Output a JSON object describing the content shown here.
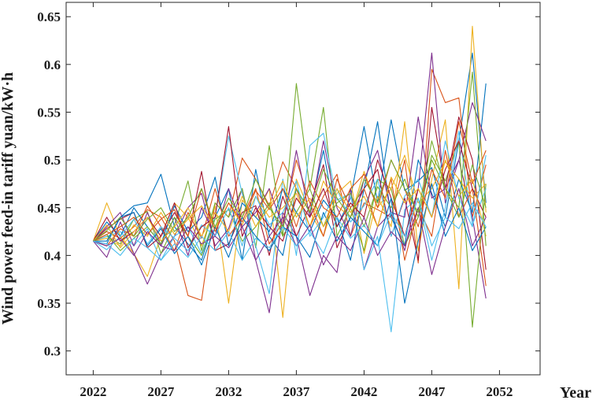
{
  "chart_data": {
    "type": "line",
    "xlabel": "Year",
    "ylabel": "Wind power feed-in tariff   yuan/kW·h",
    "xlim": [
      2020,
      2055
    ],
    "ylim": [
      0.275,
      0.665
    ],
    "xticks": [
      2022,
      2027,
      2032,
      2037,
      2042,
      2047,
      2052
    ],
    "yticks": [
      0.3,
      0.35,
      0.4,
      0.45,
      0.5,
      0.55,
      0.6,
      0.65
    ],
    "ytick_labels": [
      "0.3",
      "0.35",
      "0.4",
      "0.45",
      "0.5",
      "0.55",
      "0.6",
      "0.65"
    ],
    "grid": false,
    "legend": "none",
    "start_value": 0.415,
    "x": [
      2022,
      2023,
      2024,
      2025,
      2026,
      2027,
      2028,
      2029,
      2030,
      2031,
      2032,
      2033,
      2034,
      2035,
      2036,
      2037,
      2038,
      2039,
      2040,
      2041,
      2042,
      2043,
      2044,
      2045,
      2046,
      2047,
      2048,
      2049,
      2050,
      2051
    ],
    "series": [
      {
        "color": "#0072BD",
        "values": [
          0.415,
          0.412,
          0.44,
          0.452,
          0.455,
          0.485,
          0.43,
          0.412,
          0.395,
          0.44,
          0.47,
          0.395,
          0.49,
          0.42,
          0.4,
          0.47,
          0.445,
          0.51,
          0.43,
          0.46,
          0.535,
          0.455,
          0.542,
          0.468,
          0.478,
          0.492,
          0.44,
          0.52,
          0.612,
          0.455
        ]
      },
      {
        "color": "#D95319",
        "values": [
          0.415,
          0.425,
          0.418,
          0.43,
          0.448,
          0.44,
          0.415,
          0.358,
          0.353,
          0.455,
          0.44,
          0.502,
          0.48,
          0.452,
          0.498,
          0.47,
          0.43,
          0.462,
          0.485,
          0.42,
          0.455,
          0.448,
          0.44,
          0.5,
          0.392,
          0.595,
          0.56,
          0.565,
          0.44,
          0.495
        ]
      },
      {
        "color": "#EDB120",
        "values": [
          0.415,
          0.455,
          0.42,
          0.402,
          0.378,
          0.42,
          0.455,
          0.44,
          0.41,
          0.452,
          0.35,
          0.458,
          0.44,
          0.47,
          0.335,
          0.48,
          0.446,
          0.42,
          0.465,
          0.478,
          0.402,
          0.462,
          0.43,
          0.54,
          0.405,
          0.48,
          0.542,
          0.365,
          0.64,
          0.445
        ]
      },
      {
        "color": "#7E2F8E",
        "values": [
          0.415,
          0.398,
          0.435,
          0.402,
          0.37,
          0.402,
          0.42,
          0.45,
          0.465,
          0.41,
          0.428,
          0.47,
          0.395,
          0.34,
          0.445,
          0.42,
          0.358,
          0.4,
          0.382,
          0.47,
          0.385,
          0.43,
          0.445,
          0.405,
          0.47,
          0.612,
          0.455,
          0.5,
          0.44,
          0.355
        ]
      },
      {
        "color": "#77AC30",
        "values": [
          0.415,
          0.42,
          0.412,
          0.438,
          0.446,
          0.402,
          0.432,
          0.478,
          0.405,
          0.455,
          0.44,
          0.47,
          0.408,
          0.515,
          0.42,
          0.58,
          0.47,
          0.555,
          0.42,
          0.45,
          0.405,
          0.48,
          0.47,
          0.41,
          0.44,
          0.505,
          0.478,
          0.52,
          0.325,
          0.475
        ]
      },
      {
        "color": "#4DBEEE",
        "values": [
          0.415,
          0.42,
          0.425,
          0.41,
          0.428,
          0.395,
          0.42,
          0.43,
          0.402,
          0.44,
          0.525,
          0.465,
          0.41,
          0.36,
          0.48,
          0.4,
          0.515,
          0.528,
          0.458,
          0.465,
          0.385,
          0.42,
          0.32,
          0.448,
          0.46,
          0.395,
          0.45,
          0.53,
          0.432,
          0.47
        ]
      },
      {
        "color": "#A2142F",
        "values": [
          0.415,
          0.428,
          0.438,
          0.445,
          0.408,
          0.42,
          0.445,
          0.42,
          0.488,
          0.405,
          0.412,
          0.445,
          0.452,
          0.4,
          0.462,
          0.42,
          0.452,
          0.495,
          0.408,
          0.44,
          0.47,
          0.49,
          0.42,
          0.46,
          0.395,
          0.555,
          0.47,
          0.545,
          0.5,
          0.385
        ]
      },
      {
        "color": "#0072BD",
        "values": [
          0.415,
          0.435,
          0.42,
          0.45,
          0.43,
          0.412,
          0.452,
          0.425,
          0.44,
          0.482,
          0.41,
          0.455,
          0.44,
          0.425,
          0.47,
          0.445,
          0.425,
          0.458,
          0.44,
          0.395,
          0.47,
          0.54,
          0.44,
          0.41,
          0.5,
          0.465,
          0.43,
          0.48,
          0.445,
          0.58
        ]
      },
      {
        "color": "#D95319",
        "values": [
          0.415,
          0.41,
          0.428,
          0.42,
          0.452,
          0.43,
          0.405,
          0.445,
          0.418,
          0.47,
          0.42,
          0.44,
          0.47,
          0.412,
          0.435,
          0.5,
          0.455,
          0.42,
          0.48,
          0.45,
          0.47,
          0.43,
          0.48,
          0.395,
          0.45,
          0.42,
          0.51,
          0.44,
          0.47,
          0.368
        ]
      },
      {
        "color": "#EDB120",
        "values": [
          0.415,
          0.418,
          0.41,
          0.432,
          0.42,
          0.445,
          0.422,
          0.438,
          0.452,
          0.428,
          0.455,
          0.432,
          0.462,
          0.44,
          0.45,
          0.465,
          0.43,
          0.478,
          0.452,
          0.44,
          0.488,
          0.45,
          0.47,
          0.505,
          0.455,
          0.47,
          0.498,
          0.48,
          0.46,
          0.475
        ]
      },
      {
        "color": "#7E2F8E",
        "values": [
          0.415,
          0.43,
          0.445,
          0.41,
          0.445,
          0.41,
          0.44,
          0.4,
          0.45,
          0.42,
          0.47,
          0.43,
          0.445,
          0.47,
          0.43,
          0.51,
          0.44,
          0.52,
          0.45,
          0.42,
          0.48,
          0.51,
          0.445,
          0.44,
          0.545,
          0.46,
          0.47,
          0.5,
          0.56,
          0.52
        ]
      },
      {
        "color": "#77AC30",
        "values": [
          0.415,
          0.422,
          0.405,
          0.418,
          0.43,
          0.412,
          0.44,
          0.42,
          0.4,
          0.438,
          0.448,
          0.415,
          0.43,
          0.455,
          0.42,
          0.445,
          0.47,
          0.43,
          0.455,
          0.465,
          0.43,
          0.472,
          0.45,
          0.48,
          0.44,
          0.5,
          0.47,
          0.44,
          0.495,
          0.45
        ]
      },
      {
        "color": "#4DBEEE",
        "values": [
          0.415,
          0.406,
          0.42,
          0.438,
          0.412,
          0.43,
          0.418,
          0.405,
          0.432,
          0.42,
          0.45,
          0.41,
          0.462,
          0.432,
          0.445,
          0.478,
          0.42,
          0.44,
          0.47,
          0.435,
          0.452,
          0.48,
          0.42,
          0.462,
          0.48,
          0.44,
          0.52,
          0.46,
          0.43,
          0.505
        ]
      },
      {
        "color": "#A2142F",
        "values": [
          0.415,
          0.44,
          0.415,
          0.425,
          0.44,
          0.42,
          0.455,
          0.408,
          0.43,
          0.44,
          0.535,
          0.42,
          0.45,
          0.43,
          0.415,
          0.46,
          0.44,
          0.47,
          0.43,
          0.455,
          0.44,
          0.5,
          0.46,
          0.42,
          0.47,
          0.44,
          0.49,
          0.52,
          0.47,
          0.44
        ]
      },
      {
        "color": "#0072BD",
        "values": [
          0.415,
          0.415,
          0.44,
          0.445,
          0.41,
          0.428,
          0.402,
          0.42,
          0.39,
          0.43,
          0.398,
          0.44,
          0.42,
          0.405,
          0.43,
          0.42,
          0.398,
          0.445,
          0.415,
          0.44,
          0.425,
          0.41,
          0.46,
          0.35,
          0.415,
          0.475,
          0.42,
          0.45,
          0.405,
          0.43
        ]
      },
      {
        "color": "#D95319",
        "values": [
          0.415,
          0.422,
          0.43,
          0.44,
          0.422,
          0.438,
          0.448,
          0.42,
          0.47,
          0.425,
          0.455,
          0.435,
          0.468,
          0.448,
          0.47,
          0.43,
          0.478,
          0.45,
          0.44,
          0.47,
          0.485,
          0.45,
          0.5,
          0.47,
          0.43,
          0.49,
          0.46,
          0.54,
          0.475,
          0.51
        ]
      },
      {
        "color": "#EDB120",
        "values": [
          0.415,
          0.432,
          0.408,
          0.425,
          0.44,
          0.415,
          0.43,
          0.45,
          0.42,
          0.445,
          0.425,
          0.462,
          0.43,
          0.45,
          0.478,
          0.44,
          0.46,
          0.43,
          0.47,
          0.445,
          0.462,
          0.43,
          0.482,
          0.455,
          0.47,
          0.44,
          0.5,
          0.462,
          0.48,
          0.42
        ]
      },
      {
        "color": "#7E2F8E",
        "values": [
          0.415,
          0.41,
          0.418,
          0.4,
          0.425,
          0.41,
          0.405,
          0.43,
          0.412,
          0.42,
          0.408,
          0.43,
          0.395,
          0.42,
          0.44,
          0.41,
          0.432,
          0.39,
          0.42,
          0.405,
          0.44,
          0.4,
          0.425,
          0.41,
          0.45,
          0.38,
          0.43,
          0.47,
          0.41,
          0.44
        ]
      },
      {
        "color": "#77AC30",
        "values": [
          0.415,
          0.426,
          0.44,
          0.42,
          0.438,
          0.45,
          0.425,
          0.44,
          0.47,
          0.43,
          0.46,
          0.44,
          0.48,
          0.45,
          0.43,
          0.47,
          0.445,
          0.49,
          0.46,
          0.44,
          0.48,
          0.455,
          0.5,
          0.47,
          0.445,
          0.52,
          0.47,
          0.45,
          0.592,
          0.41
        ]
      },
      {
        "color": "#4DBEEE",
        "values": [
          0.415,
          0.412,
          0.4,
          0.418,
          0.408,
          0.395,
          0.412,
          0.398,
          0.42,
          0.405,
          0.425,
          0.395,
          0.418,
          0.408,
          0.43,
          0.41,
          0.425,
          0.402,
          0.44,
          0.418,
          0.432,
          0.41,
          0.445,
          0.42,
          0.46,
          0.41,
          0.44,
          0.428,
          0.455,
          0.43
        ]
      }
    ]
  }
}
